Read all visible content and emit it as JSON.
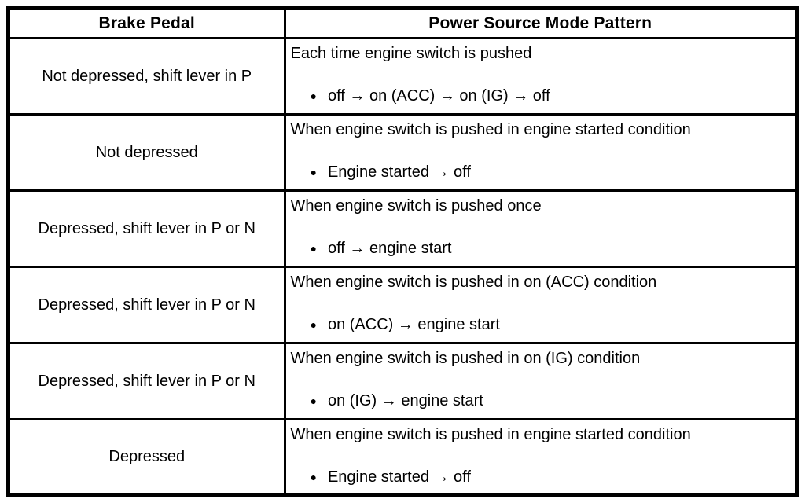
{
  "table": {
    "bullet": "●",
    "headers": {
      "brake_pedal": "Brake Pedal",
      "pattern": "Power Source Mode Pattern"
    },
    "rows": [
      {
        "brake_pedal": "Not depressed, shift lever in P",
        "condition": "Each time engine switch is pushed",
        "pattern": "off → on (ACC) → on (IG) → off"
      },
      {
        "brake_pedal": "Not depressed",
        "condition": "When engine switch is pushed in engine started condition",
        "pattern": "Engine started → off"
      },
      {
        "brake_pedal": "Depressed, shift lever in P or N",
        "condition": "When engine switch is pushed once",
        "pattern": "off → engine start"
      },
      {
        "brake_pedal": "Depressed, shift lever in P or N",
        "condition": "When engine switch is pushed in on (ACC) condition",
        "pattern": "on (ACC) → engine start"
      },
      {
        "brake_pedal": "Depressed, shift lever in P or N",
        "condition": "When engine switch is pushed in on (IG) condition",
        "pattern": "on (IG) → engine start"
      },
      {
        "brake_pedal": "Depressed",
        "condition": "When engine switch is pushed in engine started condition",
        "pattern": "Engine started → off"
      }
    ]
  }
}
